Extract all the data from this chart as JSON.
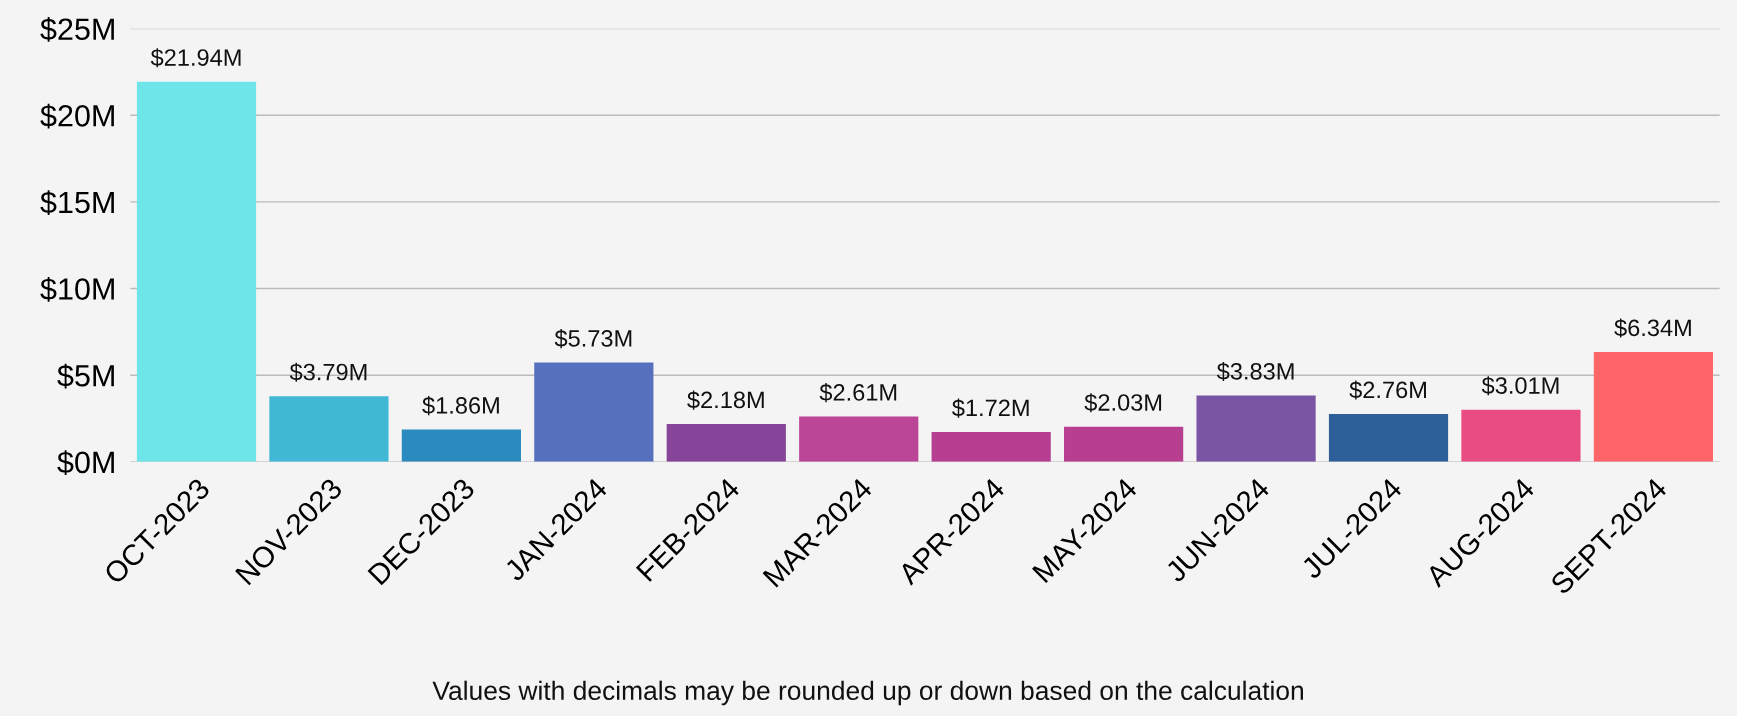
{
  "chart_data": {
    "type": "bar",
    "categories": [
      "OCT-2023",
      "NOV-2023",
      "DEC-2023",
      "JAN-2024",
      "FEB-2024",
      "MAR-2024",
      "APR-2024",
      "MAY-2024",
      "JUN-2024",
      "JUL-2024",
      "AUG-2024",
      "SEPT-2024"
    ],
    "values": [
      21.94,
      3.79,
      1.86,
      5.73,
      2.18,
      2.61,
      1.72,
      2.03,
      3.83,
      2.76,
      3.01,
      6.34
    ],
    "colors": [
      "#6ee6e9",
      "#40b8d6",
      "#2b8bbf",
      "#5670bd",
      "#874599",
      "#bb4597",
      "#b73f91",
      "#b83e8f",
      "#7a55a4",
      "#2d5f98",
      "#e84c83",
      "#fe6468"
    ],
    "value_labels": [
      "$21.94M",
      "$3.79M",
      "$1.86M",
      "$5.73M",
      "$2.18M",
      "$2.61M",
      "$1.72M",
      "$2.03M",
      "$3.83M",
      "$2.76M",
      "$3.01M",
      "$6.34M"
    ],
    "ylim": [
      0,
      25
    ],
    "yticks": [
      {
        "value": 0,
        "label": "$0M"
      },
      {
        "value": 5,
        "label": "$5M"
      },
      {
        "value": 10,
        "label": "$10M"
      },
      {
        "value": 15,
        "label": "$15M"
      },
      {
        "value": 20,
        "label": "$20M"
      },
      {
        "value": 25,
        "label": "$25M"
      }
    ],
    "grid": "y",
    "annotations": [
      "Values with decimals may be rounded up or down based on the calculation"
    ]
  }
}
